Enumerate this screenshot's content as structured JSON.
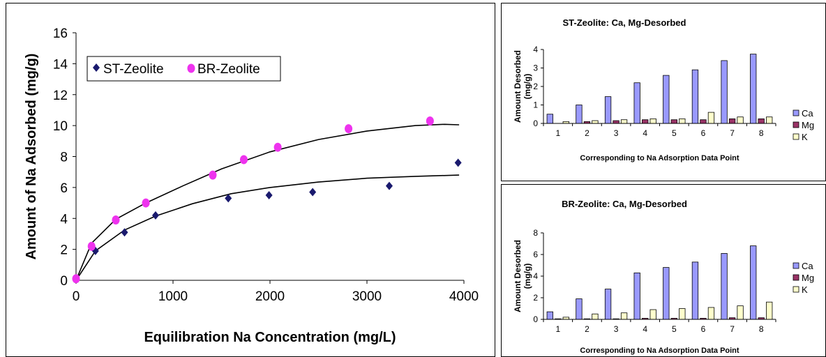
{
  "colors": {
    "st_marker": "#1a1a6e",
    "br_marker": "#ee33ee",
    "ca_bar": "#9999ff",
    "mg_bar": "#993366",
    "k_bar": "#ffffcc"
  },
  "chart_data": [
    {
      "type": "scatter",
      "title": "",
      "xlabel": "Equilibration Na Concentration (mg/L)",
      "ylabel": "Amount of Na Adsorbed (mg/g)",
      "xlim": [
        0,
        4000
      ],
      "ylim": [
        0,
        16
      ],
      "xticks": [
        "0",
        "1000",
        "2000",
        "3000",
        "4000"
      ],
      "yticks": [
        "0",
        "2",
        "4",
        "6",
        "8",
        "10",
        "12",
        "14",
        "16"
      ],
      "grid": false,
      "legend_position": "top-left",
      "series": [
        {
          "name": "ST-Zeolite",
          "marker": "diamond",
          "points": [
            [
              0,
              0.1
            ],
            [
              200,
              1.9
            ],
            [
              500,
              3.1
            ],
            [
              820,
              4.2
            ],
            [
              1570,
              5.3
            ],
            [
              1990,
              5.5
            ],
            [
              2440,
              5.7
            ],
            [
              3230,
              6.1
            ],
            [
              3940,
              7.6
            ]
          ],
          "fit": [
            [
              0,
              0
            ],
            [
              200,
              1.9
            ],
            [
              500,
              3.25
            ],
            [
              820,
              4.15
            ],
            [
              1200,
              4.95
            ],
            [
              1600,
              5.6
            ],
            [
              2000,
              6.0
            ],
            [
              2500,
              6.35
            ],
            [
              3000,
              6.6
            ],
            [
              3500,
              6.72
            ],
            [
              3950,
              6.8
            ]
          ]
        },
        {
          "name": "BR-Zeolite",
          "marker": "circle",
          "points": [
            [
              0,
              0.1
            ],
            [
              160,
              2.2
            ],
            [
              410,
              3.9
            ],
            [
              720,
              5.0
            ],
            [
              1410,
              6.8
            ],
            [
              1730,
              7.8
            ],
            [
              2080,
              8.6
            ],
            [
              2810,
              9.8
            ],
            [
              3650,
              10.3
            ]
          ],
          "fit": [
            [
              0,
              0
            ],
            [
              160,
              2.4
            ],
            [
              410,
              3.95
            ],
            [
              720,
              5.0
            ],
            [
              1100,
              6.1
            ],
            [
              1500,
              7.2
            ],
            [
              2000,
              8.3
            ],
            [
              2500,
              9.1
            ],
            [
              3000,
              9.65
            ],
            [
              3500,
              10.0
            ],
            [
              3800,
              10.08
            ],
            [
              3950,
              10.05
            ]
          ]
        }
      ]
    },
    {
      "type": "bar",
      "title": "ST-Zeolite: Ca, Mg-Desorbed",
      "xlabel": "Corresponding to Na Adsorption Data Point",
      "ylabel": "Amount Desorbed (mg/g)",
      "ylabel_lines": [
        "Amount Desorbed",
        "(mg/g)"
      ],
      "ylim": [
        0,
        4
      ],
      "yticks": [
        "0",
        "1",
        "2",
        "3",
        "4"
      ],
      "categories": [
        "1",
        "2",
        "3",
        "4",
        "5",
        "6",
        "7",
        "8"
      ],
      "legend_position": "right",
      "series": [
        {
          "name": "Ca",
          "values": [
            0.5,
            1.0,
            1.45,
            2.2,
            2.6,
            2.9,
            3.4,
            3.75
          ]
        },
        {
          "name": "Mg",
          "values": [
            0.0,
            0.1,
            0.15,
            0.2,
            0.2,
            0.2,
            0.25,
            0.25
          ]
        },
        {
          "name": "K",
          "values": [
            0.1,
            0.15,
            0.2,
            0.25,
            0.25,
            0.6,
            0.35,
            0.35
          ]
        }
      ]
    },
    {
      "type": "bar",
      "title": "BR-Zeolite: Ca, Mg-Desorbed",
      "xlabel": "Corresponding to Na Adsorption Data Point",
      "ylabel": "Amount Desorbed (mg/g)",
      "ylabel_lines": [
        "Amount Desorbed",
        "(mg/g)"
      ],
      "ylim": [
        0,
        8
      ],
      "yticks": [
        "0",
        "2",
        "4",
        "6",
        "8"
      ],
      "categories": [
        "1",
        "2",
        "3",
        "4",
        "5",
        "6",
        "7",
        "8"
      ],
      "legend_position": "right",
      "series": [
        {
          "name": "Ca",
          "values": [
            0.7,
            1.9,
            2.8,
            4.3,
            4.8,
            5.3,
            6.1,
            6.8
          ]
        },
        {
          "name": "Mg",
          "values": [
            0.05,
            0.05,
            0.05,
            0.1,
            0.1,
            0.1,
            0.15,
            0.15
          ]
        },
        {
          "name": "K",
          "values": [
            0.2,
            0.5,
            0.6,
            0.9,
            1.0,
            1.1,
            1.25,
            1.6
          ]
        }
      ]
    }
  ]
}
